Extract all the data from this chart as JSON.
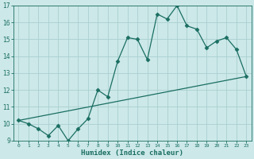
{
  "title": "",
  "xlabel": "Humidex (Indice chaleur)",
  "ylabel": "",
  "bg_color": "#cce8e8",
  "line_color": "#1a6e62",
  "grid_color": "#aacfcf",
  "xlim": [
    -0.5,
    23.5
  ],
  "ylim": [
    9,
    17
  ],
  "yticks": [
    9,
    10,
    11,
    12,
    13,
    14,
    15,
    16,
    17
  ],
  "xticks": [
    0,
    1,
    2,
    3,
    4,
    5,
    6,
    7,
    8,
    9,
    10,
    11,
    12,
    13,
    14,
    15,
    16,
    17,
    18,
    19,
    20,
    21,
    22,
    23
  ],
  "line1_x": [
    0,
    1,
    2,
    3,
    4,
    5,
    6,
    7,
    8,
    9,
    10,
    11,
    12,
    13,
    14,
    15,
    16,
    17,
    18,
    19,
    20,
    21,
    22,
    23
  ],
  "line1_y": [
    10.2,
    10.0,
    9.7,
    9.3,
    9.9,
    9.0,
    9.7,
    10.3,
    12.0,
    11.6,
    13.7,
    15.1,
    15.0,
    13.8,
    16.5,
    16.2,
    17.0,
    15.8,
    15.6,
    14.5,
    14.9,
    15.1,
    14.4,
    12.8
  ],
  "line2_x": [
    0,
    23
  ],
  "line2_y": [
    10.2,
    12.8
  ],
  "tick_fontsize": 5.5,
  "xlabel_fontsize": 6.5
}
